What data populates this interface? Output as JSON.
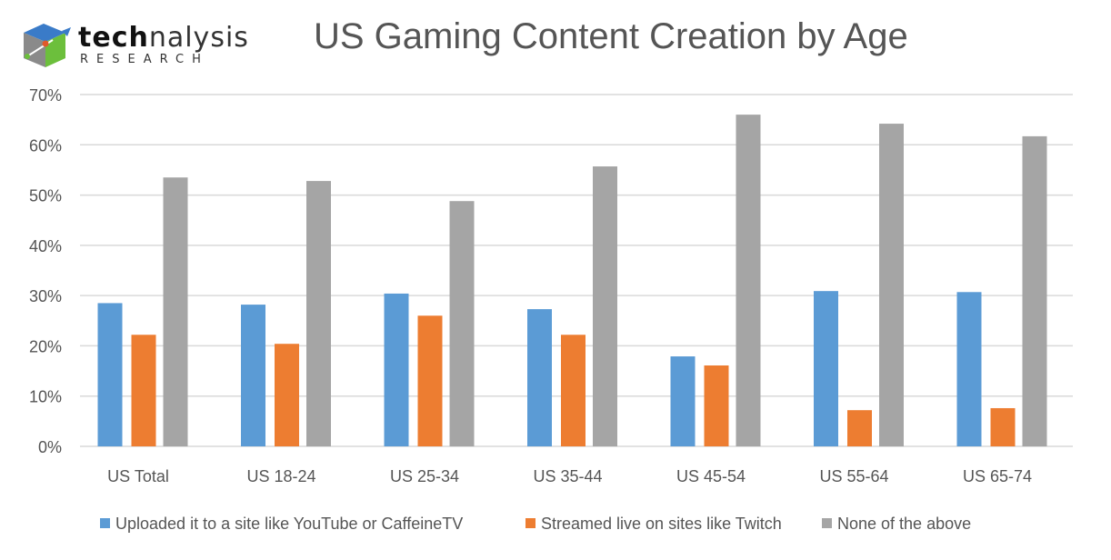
{
  "logo": {
    "text_bold": "tech",
    "text_light": "nalysis",
    "subtext": "RESEARCH"
  },
  "chart_data": {
    "type": "bar",
    "title": "US Gaming Content Creation by Age",
    "xlabel": "",
    "ylabel": "",
    "ylim": [
      0,
      70
    ],
    "yticks": [
      "0%",
      "10%",
      "20%",
      "30%",
      "40%",
      "50%",
      "60%",
      "70%"
    ],
    "grid": true,
    "legend_position": "bottom",
    "categories": [
      "US Total",
      "US 18-24",
      "US 25-34",
      "US 35-44",
      "US 45-54",
      "US 55-64",
      "US 65-74"
    ],
    "series": [
      {
        "name": "Uploaded it to a site like YouTube or CaffeineTV",
        "color": "#5b9bd5",
        "values": [
          28.5,
          28.2,
          30.4,
          27.3,
          17.9,
          30.9,
          30.7
        ]
      },
      {
        "name": "Streamed live on sites like Twitch",
        "color": "#ed7d31",
        "values": [
          22.2,
          20.4,
          26.0,
          22.2,
          16.1,
          7.2,
          7.6
        ]
      },
      {
        "name": "None of the above",
        "color": "#a5a5a5",
        "values": [
          53.5,
          52.8,
          48.8,
          55.7,
          66.0,
          64.2,
          61.7
        ]
      }
    ]
  }
}
